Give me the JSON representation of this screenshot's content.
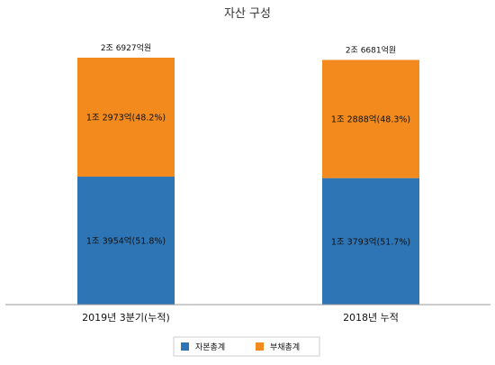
{
  "chart_data": {
    "type": "bar",
    "stacked": true,
    "title": "자산 구성",
    "categories": [
      "2019년 3분기(누적)",
      "2018년 누적"
    ],
    "totals": [
      "2조 6927억원",
      "2조 6681억원"
    ],
    "series": [
      {
        "name": "자본총계",
        "color": "#2e75b6",
        "values": [
          13954,
          13793
        ],
        "labels": [
          "1조 3954억(51.8%)",
          "1조 3793억(51.7%)"
        ]
      },
      {
        "name": "부채총계",
        "color": "#f28a1e",
        "values": [
          12973,
          12888
        ],
        "labels": [
          "1조 2973억(48.2%)",
          "1조 2888억(48.3%)"
        ]
      }
    ],
    "ylim": [
      0,
      26927
    ],
    "grid": false,
    "legend_position": "bottom-center"
  }
}
